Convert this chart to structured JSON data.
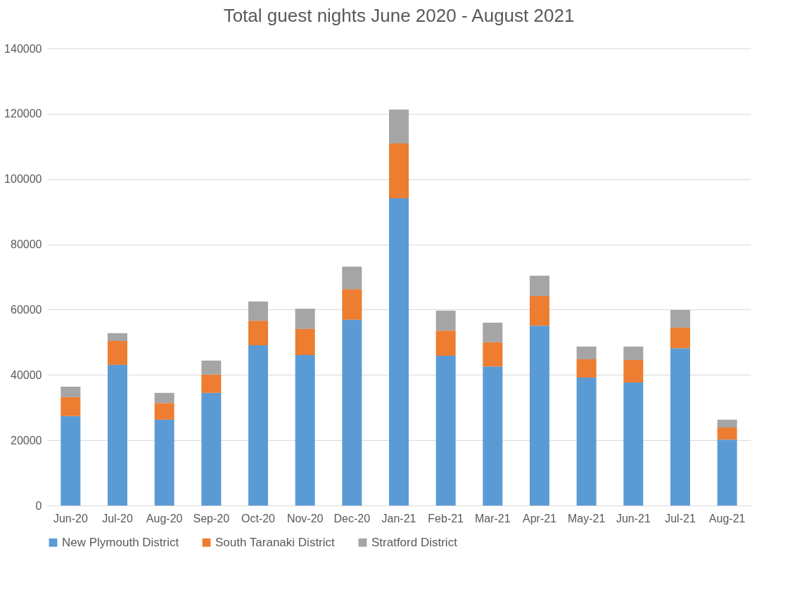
{
  "chart_data": {
    "type": "bar",
    "title": "Total guest nights June 2020 - August 2021",
    "stacked": true,
    "categories": [
      "Jun-20",
      "Jul-20",
      "Aug-20",
      "Sep-20",
      "Oct-20",
      "Nov-20",
      "Dec-20",
      "Jan-21",
      "Feb-21",
      "Mar-21",
      "Apr-21",
      "May-21",
      "Jun-21",
      "Jul-21",
      "Aug-21"
    ],
    "series": [
      {
        "name": "New Plymouth District",
        "color": "#5b9bd5",
        "values": [
          27400,
          43100,
          26300,
          34500,
          49100,
          46100,
          56900,
          94100,
          45900,
          42600,
          55100,
          39200,
          37700,
          48200,
          20200
        ]
      },
      {
        "name": "South Taranaki District",
        "color": "#ed7d31",
        "values": [
          5800,
          7300,
          5100,
          5600,
          7500,
          8000,
          9400,
          16800,
          7700,
          7400,
          9100,
          5600,
          6900,
          6300,
          3700
        ]
      },
      {
        "name": "Stratford District",
        "color": "#a5a5a5",
        "values": [
          3200,
          2400,
          3100,
          4300,
          5900,
          6200,
          6900,
          10400,
          6100,
          6000,
          6200,
          3900,
          4100,
          5400,
          2400
        ]
      }
    ],
    "ylim": [
      0,
      140000
    ],
    "yticks": [
      0,
      20000,
      40000,
      60000,
      80000,
      100000,
      120000,
      140000
    ],
    "grid": "y",
    "legend": "bottom"
  }
}
